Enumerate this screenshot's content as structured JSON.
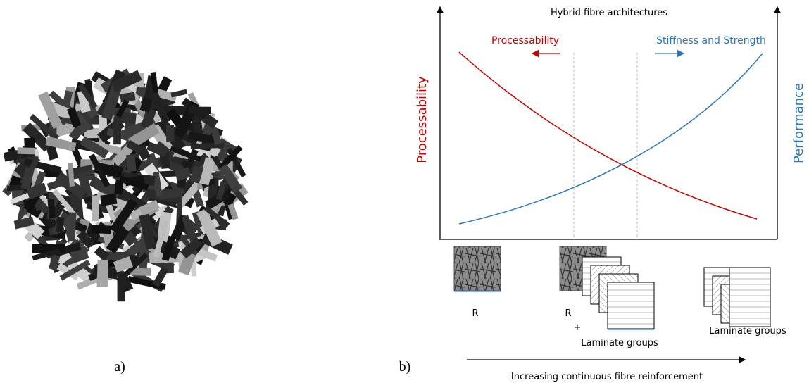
{
  "panel_a": {
    "label": "a)"
  },
  "panel_b": {
    "label": "b)",
    "title": "Hybrid fibre architectures",
    "left_arrow_label": "Processability",
    "right_arrow_label": "Stiffness and Strength",
    "y_left_label": "Processability",
    "y_right_label": "Performance",
    "groups": [
      {
        "label": "R"
      },
      {
        "label": "R",
        "plus": "+",
        "sublabel": "Laminate groups"
      },
      {
        "label": "Laminate groups"
      }
    ],
    "x_axis_label": "Increasing continuous fibre reinforcement"
  }
}
